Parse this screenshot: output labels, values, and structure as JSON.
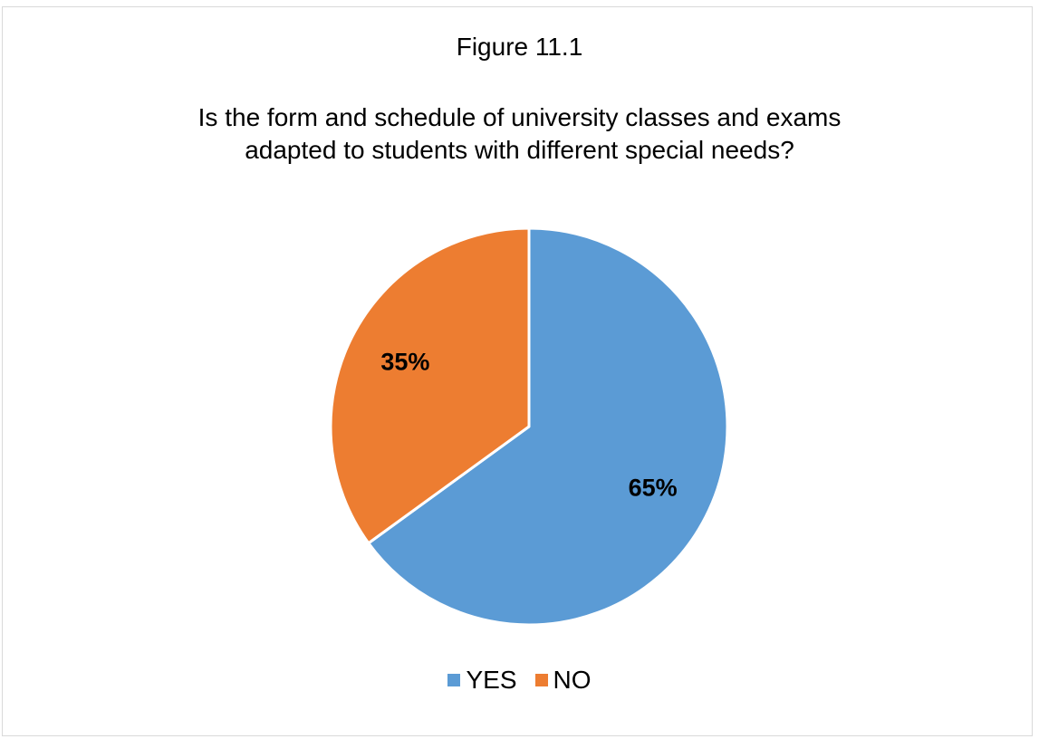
{
  "figure_label": "Figure 11.1",
  "chart_data": {
    "type": "pie",
    "title_lines": [
      "Is the form and schedule of university classes and exams",
      "adapted to students with different special needs?"
    ],
    "slices": [
      {
        "name": "YES",
        "value": 65,
        "label": "65%",
        "color": "#5B9BD5"
      },
      {
        "name": "NO",
        "value": 35,
        "label": "35%",
        "color": "#ED7D31"
      }
    ],
    "legend_position": "bottom",
    "start_angle_deg": 0,
    "direction": "clockwise"
  }
}
